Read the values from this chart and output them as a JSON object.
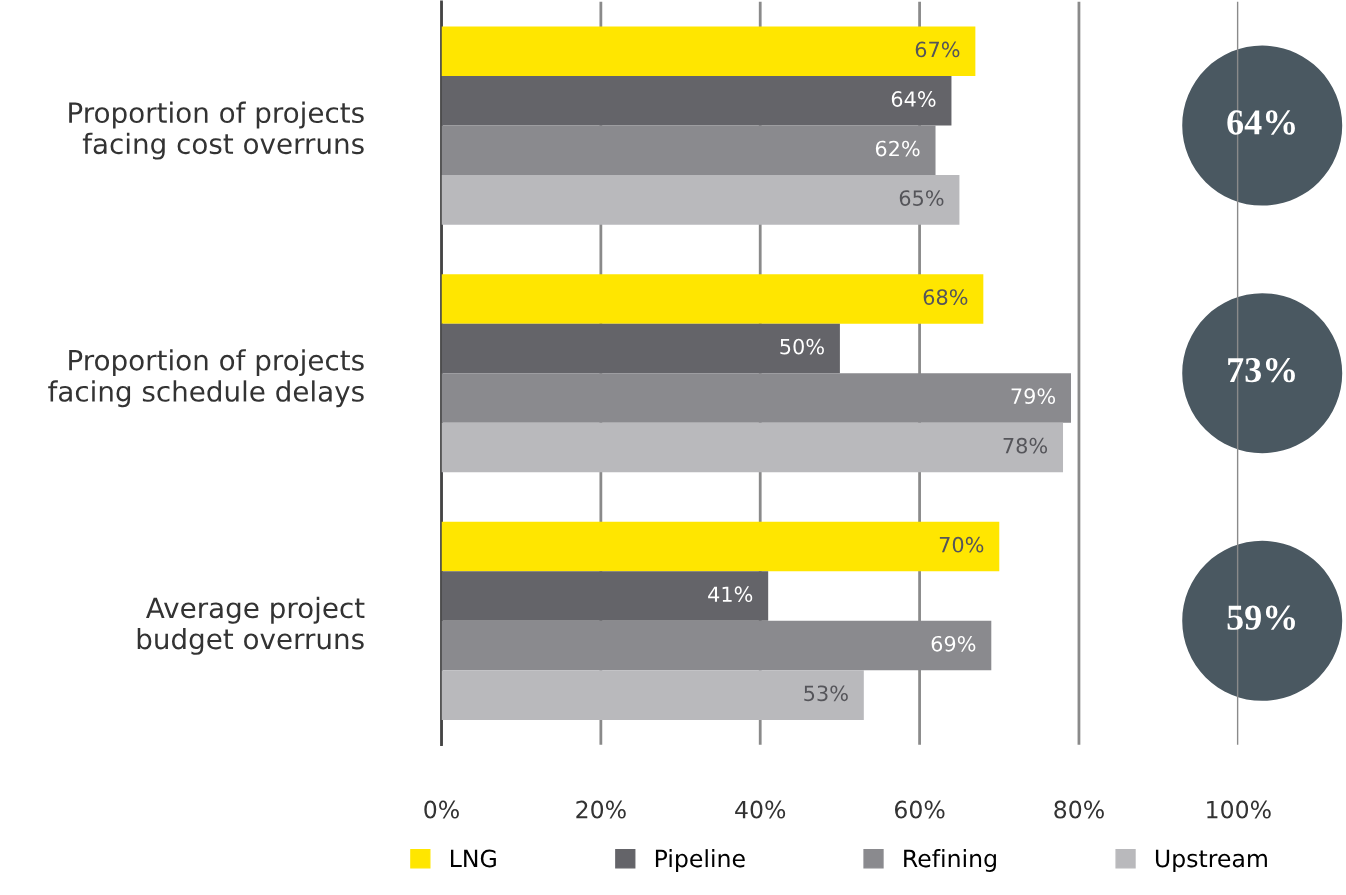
{
  "chart_data": {
    "type": "bar",
    "orientation": "horizontal",
    "categories": [
      "Proportion of projects\nfacing cost overruns",
      "Proportion of projects\nfacing schedule delays",
      "Average project\nbudget overruns"
    ],
    "series": [
      {
        "name": "LNG",
        "color": "#ffe600",
        "values": [
          67,
          68,
          70
        ],
        "value_labels": [
          "67%",
          "68%",
          "70%"
        ]
      },
      {
        "name": "Pipeline",
        "color": "#646469",
        "values": [
          64,
          50,
          41
        ],
        "value_labels": [
          "64%",
          "50%",
          "41%"
        ]
      },
      {
        "name": "Refining",
        "color": "#8a8a8e",
        "values": [
          62,
          79,
          69
        ],
        "value_labels": [
          "62%",
          "79%",
          "69%"
        ]
      },
      {
        "name": "Upstream",
        "color": "#b9b9bc",
        "values": [
          65,
          78,
          53
        ],
        "value_labels": [
          "65%",
          "78%",
          "53%"
        ]
      }
    ],
    "xlim": [
      0,
      100
    ],
    "xticks": [
      {
        "value": 0,
        "label": "0%"
      },
      {
        "value": 20,
        "label": "20%"
      },
      {
        "value": 40,
        "label": "40%"
      },
      {
        "value": 60,
        "label": "60%"
      },
      {
        "value": 80,
        "label": "80%"
      },
      {
        "value": 100,
        "label": "100%"
      }
    ],
    "grid": "x",
    "legend": "bottom",
    "annotations": [
      "64%",
      "73%",
      "59%"
    ]
  }
}
